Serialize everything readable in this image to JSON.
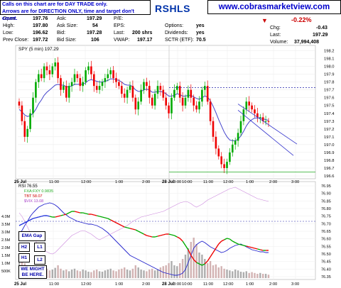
{
  "header": {
    "note_line1": "Calls on this chart are for DAY TRADE only.",
    "note_line2": "Arrows are for DIRECTION ONLY, time and target don't count.",
    "website": "www.cobrasmarketview.com",
    "symbol": "RSHLS",
    "change_pct": "-0.22%",
    "fields": {
      "open_label": "Open:",
      "open": "197.76",
      "high_label": "High:",
      "high": "197.80",
      "low_label": "Low:",
      "low": "196.62",
      "prev_close_label": "Prev Close:",
      "prev_close": "197.72",
      "ask_label": "Ask:",
      "ask": "197.29",
      "ask_size_label": "Ask Size:",
      "ask_size": "54",
      "bid_label": "Bid:",
      "bid": "197.28",
      "bid_size_label": "Bid Size:",
      "bid_size": "106",
      "pe_label": "P/E:",
      "eps_label": "EPS:",
      "last_label": "Last:",
      "last_shrs": "200 shrs",
      "vwap_label": "VWAP:",
      "vwap": "197.17",
      "options_label": "Options:",
      "options": "yes",
      "dividends_label": "Dividends:",
      "dividends": "yes",
      "sctr_label": "SCTR (ETF):",
      "sctr": "70.5",
      "chg_label": "Chg:",
      "chg": "-0.43",
      "last2_label": "Last:",
      "last": "197.29",
      "volume_label": "Volume:",
      "volume": "37,994,408"
    }
  },
  "colors": {
    "up": "#00aa00",
    "down": "#ee0000",
    "line": "#4444cc",
    "channel": "#3333cc",
    "rsi_blue": "#2222cc",
    "pink": "#cc88dd"
  },
  "boxes": {
    "ema_gap": "EMA Gap",
    "h2": "H2",
    "h1": "H1",
    "l1": "L1",
    "l2": "L2",
    "note": "WE MIGHT BE HERE."
  },
  "chart_data": [
    {
      "type": "candlestick",
      "legend": "SPY (5 min) 197.29",
      "date_labels": [
        "25 Jul",
        "28 Jul"
      ],
      "x_ticks": [
        "11:00",
        "12:00",
        "1:00",
        "2:00",
        "3:00",
        "10:00",
        "11:00",
        "12:00",
        "1:00",
        "2:00",
        "3:00"
      ],
      "ylim": [
        196.6,
        198.25
      ],
      "y_ticks": [
        "198.2",
        "198.1",
        "198.0",
        "197.9",
        "197.8",
        "197.7",
        "197.6",
        "197.5",
        "197.4",
        "197.3",
        "197.2",
        "197.1",
        "197.0",
        "196.9",
        "196.8",
        "196.7",
        "196.6"
      ],
      "closes": [
        197.5,
        197.3,
        197.1,
        197.2,
        197.4,
        197.6,
        197.8,
        197.9,
        197.85,
        198.0,
        197.95,
        197.9,
        198.0,
        198.05,
        197.85,
        197.7,
        197.75,
        197.6,
        197.75,
        197.8,
        197.9,
        197.85,
        197.75,
        197.8,
        197.95,
        198.0,
        197.9,
        197.75,
        197.7,
        197.75,
        197.8,
        197.85,
        197.9,
        197.95,
        197.85,
        197.8,
        197.75,
        197.65,
        197.6,
        197.7,
        197.75,
        197.6,
        197.45,
        197.55,
        197.7,
        197.8,
        197.75,
        197.6,
        197.5,
        197.65,
        197.75,
        197.7,
        197.6,
        197.5,
        197.4,
        197.6,
        197.7,
        197.75,
        197.6,
        197.5,
        197.6,
        197.7,
        197.6,
        197.5,
        197.45,
        197.55,
        197.7,
        197.75,
        197.55,
        197.3,
        197.1,
        196.95,
        196.85,
        196.75,
        196.7,
        196.78,
        196.9,
        197.0,
        197.05,
        197.15,
        197.3,
        197.45,
        197.55,
        197.5,
        197.45,
        197.4,
        197.35,
        197.35,
        197.3,
        197.3,
        197.29
      ],
      "ema": [
        197.45,
        197.42,
        197.38,
        197.36,
        197.37,
        197.4,
        197.45,
        197.52,
        197.57,
        197.63,
        197.67,
        197.7,
        197.73,
        197.76,
        197.77,
        197.76,
        197.76,
        197.74,
        197.74,
        197.75,
        197.77,
        197.77,
        197.77,
        197.77,
        197.79,
        197.82,
        197.83,
        197.82,
        197.81,
        197.8,
        197.8,
        197.81,
        197.82,
        197.84,
        197.84,
        197.83,
        197.82,
        197.8,
        197.77,
        197.76,
        197.76,
        197.74,
        197.7,
        197.68,
        197.68,
        197.7,
        197.71,
        197.7,
        197.67,
        197.67,
        197.68,
        197.68,
        197.67,
        197.65,
        197.62,
        197.62,
        197.63,
        197.65,
        197.64,
        197.62,
        197.62,
        197.63,
        197.63,
        197.61,
        197.59,
        197.58,
        197.6,
        197.62,
        197.61,
        197.56,
        197.49,
        197.41,
        197.32,
        197.24,
        197.16,
        197.1,
        197.06,
        197.05,
        197.05,
        197.07,
        197.11,
        197.17,
        197.24,
        197.29,
        197.32,
        197.34,
        197.34,
        197.34,
        197.33,
        197.32,
        197.31
      ],
      "resistance_level": 197.73,
      "support_level": 196.65,
      "channel_upper": [
        [
          80,
          197.52
        ],
        [
          90,
          197.08
        ]
      ],
      "channel_lower": [
        [
          80,
          197.44
        ],
        [
          90,
          196.97
        ]
      ]
    },
    {
      "type": "line",
      "series": [
        {
          "name": "RSI 76.55"
        },
        {
          "name": "$VIX 13.08"
        },
        {
          "name": "FXA:FXY 0.9835"
        },
        {
          "name": "TBT 58.07"
        }
      ],
      "y_ticks": [
        "76.95",
        "76.90",
        "76.85",
        "76.80",
        "76.75",
        "76.70",
        "76.65",
        "76.60",
        "76.55",
        "76.50",
        "76.45",
        "76.40",
        "76.35"
      ],
      "volume_ticks": [
        "4.0M",
        "3.5M",
        "3.0M",
        "2.5M",
        "2.0M",
        "1.5M",
        "1.0M",
        "500K"
      ],
      "x_ticks": [
        "11:00",
        "12:00",
        "1:00",
        "2:00",
        "3:00",
        "10:00",
        "11:00",
        "12:00",
        "1:00",
        "2:00",
        "3:00"
      ],
      "date_labels": [
        "25 Jul",
        "28 Jul"
      ]
    }
  ]
}
